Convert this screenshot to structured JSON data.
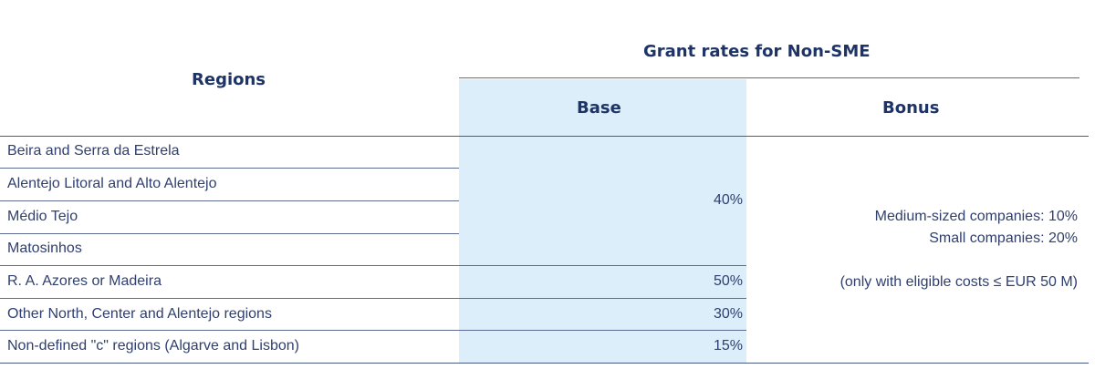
{
  "table": {
    "headers": {
      "regions": "Regions",
      "group": "Grant rates for Non-SME",
      "base": "Base",
      "bonus": "Bonus"
    },
    "rows": [
      {
        "region": "Beira and Serra da Estrela"
      },
      {
        "region": "Alentejo Litoral and Alto Alentejo"
      },
      {
        "region": "Médio Tejo"
      },
      {
        "region": "Matosinhos"
      },
      {
        "region": "R. A. Azores or Madeira"
      },
      {
        "region": "Other North, Center and Alentejo regions"
      },
      {
        "region": "Non-defined \"c\" regions (Algarve and Lisbon)"
      }
    ],
    "base_values": {
      "group1": "40%",
      "azores": "50%",
      "other": "30%",
      "nondefined": "15%"
    },
    "bonus": {
      "line1": "Medium-sized companies: 10%",
      "line2": "Small companies: 20%",
      "line3": "(only with eligible costs ≤ EUR 50 M)"
    },
    "colors": {
      "base_column_fill": "#dbeef9",
      "header_text": "#1f3466",
      "body_text": "#2f3f6e",
      "rules": "#5d6c90"
    }
  }
}
